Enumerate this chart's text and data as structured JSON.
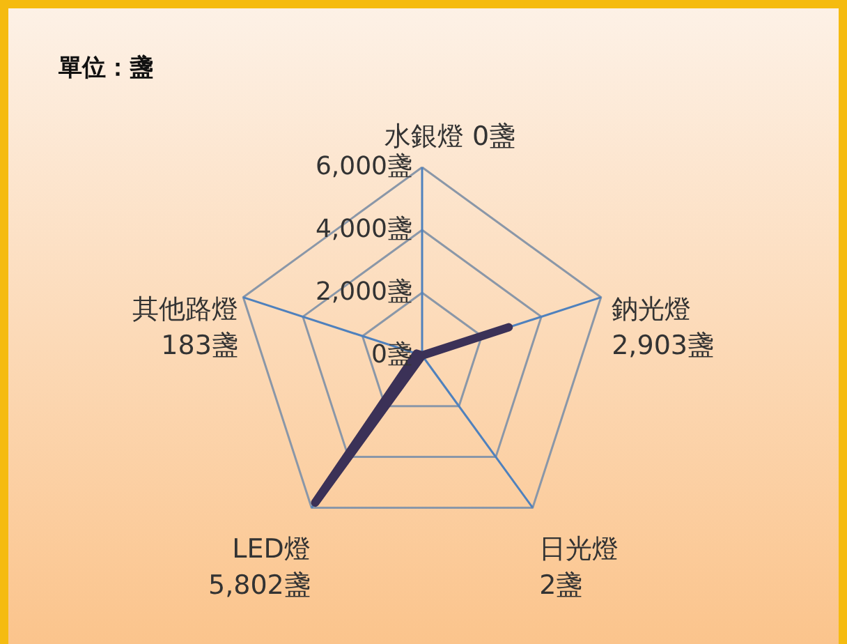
{
  "chart_data": {
    "type": "radar",
    "title": "單位：盞",
    "categories": [
      "水銀燈 0盞",
      "鈉光燈\n2,903盞",
      "日光燈\n2盞",
      "LED燈\n5,802盞",
      "其他路燈\n183盞"
    ],
    "series": [
      {
        "color": "#3b3157",
        "values": [
          0,
          2903,
          2,
          5802,
          183
        ]
      }
    ],
    "ylim": [
      0,
      6000
    ],
    "yticks": [
      {
        "value": 0,
        "label": "0盞"
      },
      {
        "value": 2000,
        "label": "2,000盞"
      },
      {
        "value": 4000,
        "label": "4,000盞"
      },
      {
        "value": 6000,
        "label": "6,000盞"
      }
    ],
    "grid": true
  }
}
